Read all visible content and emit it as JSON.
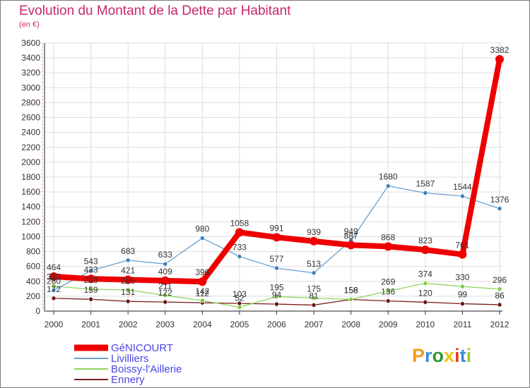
{
  "title": "Evolution du Montant de la Dette par Habitant",
  "subtitle": "(en €)",
  "logo_text": "Proxiti",
  "logo_colors": [
    "#f59a1a",
    "#3a8fd6",
    "#2f9a3c",
    "#f0c419",
    "#e23c2a",
    "#3a8fd6",
    "#9acd32"
  ],
  "chart_data": {
    "type": "line",
    "x": [
      "2000",
      "2001",
      "2002",
      "2003",
      "2004",
      "2005",
      "2006",
      "2007",
      "2008",
      "2009",
      "2010",
      "2011",
      "2012"
    ],
    "ylim": [
      0,
      3600
    ],
    "yticks": [
      0,
      200,
      400,
      600,
      800,
      1000,
      1200,
      1400,
      1600,
      1800,
      2000,
      2200,
      2400,
      2600,
      2800,
      3000,
      3200,
      3400,
      3600
    ],
    "grid": true,
    "legend_position": "bottom-left",
    "series": [
      {
        "name": "Ennery",
        "color": "#7a1f1f",
        "marker": "#6b1414",
        "width": 1.3,
        "values": [
          172,
          159,
          131,
          122,
          112,
          103,
          94,
          81,
          156,
          136,
          120,
          99,
          86
        ]
      },
      {
        "name": "Boissy-l'Aillerie",
        "color": "#8fd65f",
        "marker": "#7dcf3e",
        "width": 1.3,
        "values": [
          335,
          293,
          285,
          211,
          142,
          52,
          195,
          175,
          158,
          269,
          374,
          330,
          296
        ]
      },
      {
        "name": "Livilliers",
        "color": "#6aa0cf",
        "marker": "#3a7fc0",
        "width": 1.3,
        "values": [
          280,
          543,
          683,
          633,
          980,
          733,
          577,
          513,
          949,
          1680,
          1587,
          1544,
          1376
        ]
      },
      {
        "name": "GéNICOURT",
        "color": "#ee0000",
        "marker": "#ee0000",
        "width": 8,
        "values": [
          464,
          433,
          421,
          409,
          396,
          1058,
          991,
          939,
          887,
          868,
          823,
          761,
          3382
        ]
      }
    ],
    "legend": [
      "GéNICOURT",
      "Livilliers",
      "Boissy-l'Aillerie",
      "Ennery"
    ]
  }
}
